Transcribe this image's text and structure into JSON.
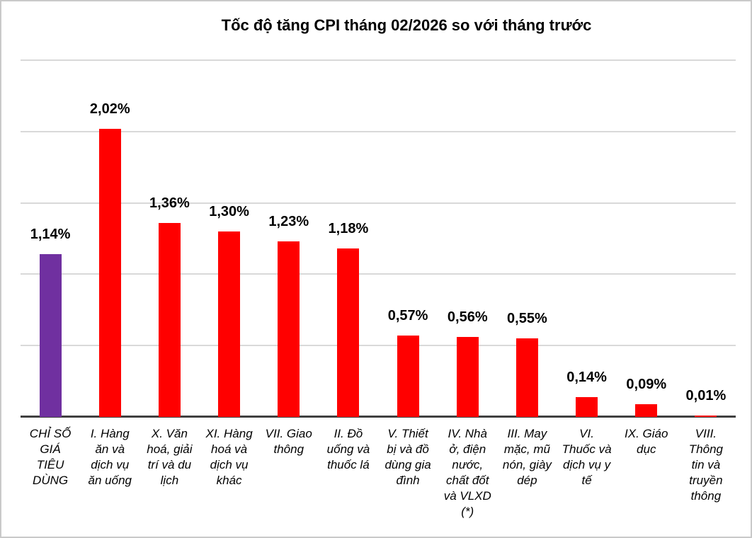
{
  "chart_data": {
    "type": "bar",
    "title": "Tốc độ tăng CPI tháng 02/2026 so với tháng trước",
    "unit": "%",
    "ylim": [
      0,
      2.5
    ],
    "grid_step": 0.5,
    "grid": true,
    "legend": false,
    "xlabel": "",
    "ylabel": "",
    "categories": [
      "CHỈ SỐ GIÁ TIÊU DÙNG",
      "I. Hàng ăn và dịch vụ ăn uống",
      "X. Văn hoá, giải trí và du lịch",
      "XI. Hàng hoá và dịch vụ khác",
      "VII. Giao thông",
      "II. Đồ uống và thuốc lá",
      "V. Thiết bị và đồ dùng gia đình",
      "IV. Nhà ở, điện nước, chất đốt và VLXD (*)",
      "III. May mặc, mũ nón, giày dép",
      "VI. Thuốc và dịch vụ y tế",
      "IX. Giáo dục",
      "VIII. Thông tin và truyền thông"
    ],
    "category_lines": [
      [
        "CHỈ SỐ",
        "GIÁ",
        "TIÊU",
        "DÙNG"
      ],
      [
        "I. Hàng",
        "ăn và",
        "dịch vụ",
        "ăn uống"
      ],
      [
        "X. Văn",
        "hoá, giải",
        "trí và du",
        "lịch"
      ],
      [
        "XI. Hàng",
        "hoá và",
        "dịch vụ",
        "khác"
      ],
      [
        "VII. Giao",
        "thông"
      ],
      [
        "II. Đồ",
        "uống và",
        "thuốc lá"
      ],
      [
        "V. Thiết",
        "bị và đồ",
        "dùng gia",
        "đình"
      ],
      [
        "IV. Nhà",
        "ở, điện",
        "nước,",
        "chất đốt",
        "và VLXD",
        "(*)"
      ],
      [
        "III. May",
        "mặc, mũ",
        "nón, giày",
        "dép"
      ],
      [
        "VI.",
        "Thuốc và",
        "dịch vụ y",
        "tế"
      ],
      [
        "IX. Giáo",
        "dục"
      ],
      [
        "VIII.",
        "Thông",
        "tin và",
        "truyền",
        "thông"
      ]
    ],
    "values": [
      1.14,
      2.02,
      1.36,
      1.3,
      1.23,
      1.18,
      0.57,
      0.56,
      0.55,
      0.14,
      0.09,
      0.01
    ],
    "value_labels": [
      "1,14%",
      "2,02%",
      "1,36%",
      "1,30%",
      "1,23%",
      "1,18%",
      "0,57%",
      "0,56%",
      "0,55%",
      "0,14%",
      "0,09%",
      "0,01%"
    ],
    "bar_colors": [
      "#7030A0",
      "#FF0000",
      "#FF0000",
      "#FF0000",
      "#FF0000",
      "#FF0000",
      "#FF0000",
      "#FF0000",
      "#FF0000",
      "#FF0000",
      "#FF0000",
      "#FF0000"
    ],
    "colors": {
      "cpi_highlight": "#7030A0",
      "default_bar": "#FF0000",
      "gridline": "#D9D9D9",
      "axis": "#404040",
      "text": "#000000"
    }
  }
}
